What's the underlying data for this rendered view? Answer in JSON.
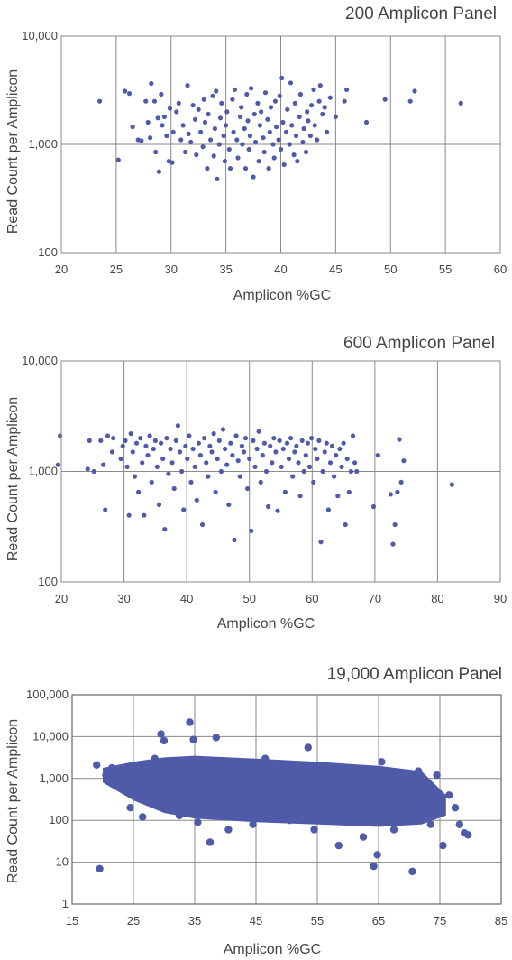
{
  "chart_data": [
    {
      "type": "scatter",
      "title": "200 Amplicon Panel",
      "xlabel": "Amplicon %GC",
      "ylabel": "Read Count per Amplicon",
      "x_ticks": [
        "20",
        "25",
        "30",
        "35",
        "40",
        "45",
        "50",
        "55",
        "60"
      ],
      "y_ticks": [
        "100",
        "1,000",
        "10,000"
      ],
      "xlim": [
        20,
        60
      ],
      "ylim": [
        100,
        10000
      ],
      "y_scale": "log",
      "grid": true,
      "color": "#4F5BA9",
      "points": [
        [
          23.5,
          2500
        ],
        [
          25.2,
          720
        ],
        [
          25.8,
          3100
        ],
        [
          26.2,
          2950
        ],
        [
          26.5,
          1450
        ],
        [
          27,
          1100
        ],
        [
          27.3,
          1080
        ],
        [
          27.7,
          2500
        ],
        [
          27.9,
          1600
        ],
        [
          28.1,
          1150
        ],
        [
          28.2,
          3650
        ],
        [
          28.5,
          2500
        ],
        [
          28.6,
          850
        ],
        [
          28.8,
          1750
        ],
        [
          28.9,
          560
        ],
        [
          29.1,
          2900
        ],
        [
          29.2,
          1500
        ],
        [
          29.4,
          1800
        ],
        [
          29.6,
          1200
        ],
        [
          29.8,
          700
        ],
        [
          29.9,
          2150
        ],
        [
          30.1,
          680
        ],
        [
          30.2,
          1300
        ],
        [
          30.5,
          2000
        ],
        [
          30.7,
          2400
        ],
        [
          30.9,
          1100
        ],
        [
          31.1,
          1500
        ],
        [
          31.3,
          850
        ],
        [
          31.5,
          3500
        ],
        [
          31.6,
          1250
        ],
        [
          31.8,
          1050
        ],
        [
          32,
          2300
        ],
        [
          32.2,
          1700
        ],
        [
          32.3,
          800
        ],
        [
          32.5,
          2100
        ],
        [
          32.7,
          1300
        ],
        [
          32.9,
          950
        ],
        [
          33,
          2600
        ],
        [
          33.1,
          1600
        ],
        [
          33.3,
          600
        ],
        [
          33.4,
          1900
        ],
        [
          33.6,
          1100
        ],
        [
          33.8,
          2800
        ],
        [
          33.9,
          780
        ],
        [
          34,
          1400
        ],
        [
          34.1,
          3100
        ],
        [
          34.2,
          480
        ],
        [
          34.4,
          1000
        ],
        [
          34.5,
          1750
        ],
        [
          34.6,
          2400
        ],
        [
          34.8,
          1200
        ],
        [
          34.9,
          700
        ],
        [
          35,
          1500
        ],
        [
          35.1,
          2000
        ],
        [
          35.3,
          900
        ],
        [
          35.4,
          600
        ],
        [
          35.6,
          2600
        ],
        [
          35.7,
          1300
        ],
        [
          35.8,
          3200
        ],
        [
          36,
          1100
        ],
        [
          36.1,
          750
        ],
        [
          36.3,
          1800
        ],
        [
          36.4,
          2200
        ],
        [
          36.5,
          1000
        ],
        [
          36.7,
          1400
        ],
        [
          36.8,
          600
        ],
        [
          36.9,
          2900
        ],
        [
          37,
          1650
        ],
        [
          37.1,
          900
        ],
        [
          37.2,
          1200
        ],
        [
          37.3,
          3300
        ],
        [
          37.5,
          500
        ],
        [
          37.6,
          1900
        ],
        [
          37.7,
          1050
        ],
        [
          37.9,
          2400
        ],
        [
          38,
          700
        ],
        [
          38.1,
          1500
        ],
        [
          38.2,
          2000
        ],
        [
          38.4,
          1150
        ],
        [
          38.5,
          850
        ],
        [
          38.6,
          3000
        ],
        [
          38.8,
          1700
        ],
        [
          38.9,
          600
        ],
        [
          39,
          1300
        ],
        [
          39.1,
          2200
        ],
        [
          39.3,
          1000
        ],
        [
          39.4,
          750
        ],
        [
          39.5,
          2500
        ],
        [
          39.6,
          1450
        ],
        [
          39.8,
          1100
        ],
        [
          39.9,
          2800
        ],
        [
          40,
          900
        ],
        [
          40.1,
          4100
        ],
        [
          40.2,
          1600
        ],
        [
          40.3,
          650
        ],
        [
          40.5,
          1300
        ],
        [
          40.6,
          2100
        ],
        [
          40.8,
          1000
        ],
        [
          40.9,
          3700
        ],
        [
          41,
          1500
        ],
        [
          41.2,
          800
        ],
        [
          41.3,
          2400
        ],
        [
          41.4,
          1200
        ],
        [
          41.5,
          700
        ],
        [
          41.7,
          1800
        ],
        [
          41.8,
          2900
        ],
        [
          42,
          1050
        ],
        [
          42.1,
          1400
        ],
        [
          42.3,
          850
        ],
        [
          42.4,
          2000
        ],
        [
          42.5,
          1650
        ],
        [
          42.7,
          1200
        ],
        [
          42.8,
          2300
        ],
        [
          43,
          3200
        ],
        [
          43.1,
          1500
        ],
        [
          43.3,
          1100
        ],
        [
          43.5,
          2500
        ],
        [
          43.6,
          3500
        ],
        [
          43.8,
          1900
        ],
        [
          44,
          2200
        ],
        [
          44.2,
          1300
        ],
        [
          44.5,
          2700
        ],
        [
          45,
          1800
        ],
        [
          45.8,
          2500
        ],
        [
          46,
          3200
        ],
        [
          47.8,
          1600
        ],
        [
          49.5,
          2600
        ],
        [
          51.8,
          2500
        ],
        [
          52.2,
          3100
        ],
        [
          56.4,
          2400
        ]
      ]
    },
    {
      "type": "scatter",
      "title": "600 Amplicon Panel",
      "xlabel": "Amplicon %GC",
      "ylabel": "Read Count per Amplicon",
      "x_ticks": [
        "20",
        "30",
        "40",
        "50",
        "60",
        "70",
        "80",
        "90"
      ],
      "y_ticks": [
        "100",
        "1,000",
        "10,000"
      ],
      "xlim": [
        20,
        90
      ],
      "ylim": [
        100,
        10000
      ],
      "y_scale": "log",
      "grid": true,
      "color": "#4F5BA9",
      "points": [
        [
          19.5,
          1150
        ],
        [
          19.8,
          2100
        ],
        [
          24.2,
          1050
        ],
        [
          24.5,
          1900
        ],
        [
          25.2,
          1000
        ],
        [
          26.3,
          1900
        ],
        [
          26.7,
          1150
        ],
        [
          27,
          450
        ],
        [
          27.4,
          2100
        ],
        [
          28.1,
          1500
        ],
        [
          28.3,
          2000
        ],
        [
          29.5,
          1300
        ],
        [
          29.8,
          1700
        ],
        [
          30.2,
          1900
        ],
        [
          30.5,
          1100
        ],
        [
          30.8,
          400
        ],
        [
          31.1,
          2200
        ],
        [
          31.4,
          1500
        ],
        [
          31.7,
          900
        ],
        [
          32,
          1800
        ],
        [
          32.3,
          650
        ],
        [
          32.6,
          2000
        ],
        [
          32.9,
          1200
        ],
        [
          33.2,
          400
        ],
        [
          33.5,
          1700
        ],
        [
          33.8,
          1400
        ],
        [
          34.1,
          2100
        ],
        [
          34.4,
          800
        ],
        [
          34.7,
          1600
        ],
        [
          35,
          1900
        ],
        [
          35.3,
          1100
        ],
        [
          35.6,
          500
        ],
        [
          35.9,
          1800
        ],
        [
          36.2,
          1300
        ],
        [
          36.5,
          300
        ],
        [
          36.8,
          2000
        ],
        [
          37.1,
          950
        ],
        [
          37.4,
          1600
        ],
        [
          37.7,
          1200
        ],
        [
          38,
          700
        ],
        [
          38.3,
          1900
        ],
        [
          38.6,
          2600
        ],
        [
          38.9,
          1500
        ],
        [
          39.2,
          1000
        ],
        [
          39.5,
          450
        ],
        [
          39.8,
          1700
        ],
        [
          40.1,
          1300
        ],
        [
          40.4,
          2100
        ],
        [
          40.7,
          800
        ],
        [
          41,
          1600
        ],
        [
          41.3,
          1100
        ],
        [
          41.6,
          550
        ],
        [
          41.9,
          1800
        ],
        [
          42.2,
          1400
        ],
        [
          42.5,
          330
        ],
        [
          42.8,
          2000
        ],
        [
          43.1,
          1200
        ],
        [
          43.4,
          900
        ],
        [
          43.7,
          1700
        ],
        [
          44,
          1500
        ],
        [
          44.3,
          2200
        ],
        [
          44.6,
          650
        ],
        [
          44.9,
          1300
        ],
        [
          45.2,
          1900
        ],
        [
          45.5,
          1000
        ],
        [
          45.8,
          2400
        ],
        [
          46.1,
          1600
        ],
        [
          46.4,
          1150
        ],
        [
          46.7,
          500
        ],
        [
          47,
          1800
        ],
        [
          47.3,
          1400
        ],
        [
          47.6,
          240
        ],
        [
          47.9,
          2100
        ],
        [
          48.2,
          1250
        ],
        [
          48.5,
          900
        ],
        [
          48.8,
          1700
        ],
        [
          49.1,
          1500
        ],
        [
          49.4,
          2000
        ],
        [
          49.7,
          700
        ],
        [
          50,
          1300
        ],
        [
          50.3,
          290
        ],
        [
          50.6,
          1900
        ],
        [
          50.9,
          1100
        ],
        [
          51.2,
          1600
        ],
        [
          51.5,
          2300
        ],
        [
          51.8,
          800
        ],
        [
          52.1,
          1400
        ],
        [
          52.4,
          1800
        ],
        [
          52.7,
          1000
        ],
        [
          53,
          480
        ],
        [
          53.3,
          1700
        ],
        [
          53.6,
          1200
        ],
        [
          53.9,
          2000
        ],
        [
          54.2,
          1500
        ],
        [
          54.5,
          440
        ],
        [
          54.8,
          1900
        ],
        [
          55.1,
          1100
        ],
        [
          55.4,
          1600
        ],
        [
          55.7,
          650
        ],
        [
          56,
          1800
        ],
        [
          56.3,
          1300
        ],
        [
          56.6,
          2000
        ],
        [
          56.9,
          900
        ],
        [
          57.2,
          1500
        ],
        [
          57.5,
          1700
        ],
        [
          57.8,
          1200
        ],
        [
          58.1,
          600
        ],
        [
          58.4,
          1900
        ],
        [
          58.7,
          1000
        ],
        [
          59,
          1400
        ],
        [
          59.3,
          1800
        ],
        [
          59.6,
          1100
        ],
        [
          59.9,
          2000
        ],
        [
          60.2,
          800
        ],
        [
          60.5,
          1600
        ],
        [
          60.8,
          1300
        ],
        [
          61.1,
          1900
        ],
        [
          61.4,
          230
        ],
        [
          61.7,
          1000
        ],
        [
          62,
          1500
        ],
        [
          62.3,
          1800
        ],
        [
          62.6,
          450
        ],
        [
          62.9,
          1200
        ],
        [
          63.2,
          1700
        ],
        [
          63.5,
          900
        ],
        [
          63.8,
          1400
        ],
        [
          64.1,
          600
        ],
        [
          64.4,
          1600
        ],
        [
          64.7,
          1100
        ],
        [
          65,
          1800
        ],
        [
          65.3,
          330
        ],
        [
          65.6,
          1300
        ],
        [
          65.9,
          650
        ],
        [
          66.2,
          1000
        ],
        [
          66.5,
          2100
        ],
        [
          66.8,
          1200
        ],
        [
          67.1,
          1000
        ],
        [
          69.8,
          480
        ],
        [
          70.5,
          1400
        ],
        [
          72.5,
          620
        ],
        [
          72.9,
          220
        ],
        [
          73.2,
          330
        ],
        [
          73.6,
          650
        ],
        [
          73.9,
          1950
        ],
        [
          74.2,
          800
        ],
        [
          74.6,
          1250
        ],
        [
          82.3,
          760
        ]
      ]
    },
    {
      "type": "scatter",
      "title": "19,000 Amplicon Panel",
      "xlabel": "Amplicon %GC",
      "ylabel": "Read Count per Amplicon",
      "x_ticks": [
        "15",
        "25",
        "35",
        "45",
        "55",
        "65",
        "75",
        "85"
      ],
      "y_ticks": [
        "1",
        "10",
        "100",
        "1,000",
        "10,000",
        "100,000"
      ],
      "xlim": [
        15,
        85
      ],
      "ylim": [
        1,
        100000
      ],
      "y_scale": "log",
      "grid": true,
      "color": "#4F5BA9",
      "points": [
        [
          19,
          2100
        ],
        [
          19.5,
          7
        ],
        [
          20.5,
          1200
        ],
        [
          21.5,
          1800
        ],
        [
          22.5,
          1000
        ],
        [
          23.5,
          1500
        ],
        [
          24.5,
          200
        ],
        [
          25.5,
          800
        ],
        [
          26.5,
          120
        ],
        [
          27.5,
          1500
        ],
        [
          28.5,
          3000
        ],
        [
          29.5,
          11500
        ],
        [
          30,
          8000
        ],
        [
          31.5,
          500
        ],
        [
          32.5,
          130
        ],
        [
          33.5,
          1800
        ],
        [
          34.2,
          22000
        ],
        [
          34.8,
          8500
        ],
        [
          35.5,
          90
        ],
        [
          36.5,
          600
        ],
        [
          37.5,
          30
        ],
        [
          38.5,
          9500
        ],
        [
          39.5,
          2500
        ],
        [
          40.5,
          60
        ],
        [
          41.5,
          1200
        ],
        [
          42.5,
          400
        ],
        [
          44.5,
          80
        ],
        [
          46.5,
          3000
        ],
        [
          48.5,
          150
        ],
        [
          50.5,
          100
        ],
        [
          53.5,
          5500
        ],
        [
          54.5,
          60
        ],
        [
          56.5,
          200
        ],
        [
          58.5,
          25
        ],
        [
          60.5,
          100
        ],
        [
          62.5,
          40
        ],
        [
          64.2,
          8
        ],
        [
          64.8,
          15
        ],
        [
          65.5,
          2500
        ],
        [
          67.5,
          60
        ],
        [
          69.5,
          300
        ],
        [
          70.5,
          6
        ],
        [
          71.5,
          1500
        ],
        [
          73.5,
          80
        ],
        [
          74.5,
          1200
        ],
        [
          75.5,
          25
        ],
        [
          76.5,
          400
        ],
        [
          77.5,
          200
        ],
        [
          78.2,
          80
        ],
        [
          79,
          50
        ],
        [
          79.6,
          45
        ]
      ]
    }
  ]
}
